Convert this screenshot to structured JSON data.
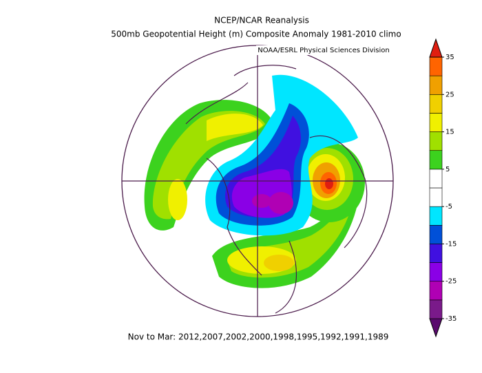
{
  "header": {
    "title": "NCEP/NCAR Reanalysis",
    "subtitle": "500mb Geopotential Height (m) Composite Anomaly 1981-2010 climo",
    "credit": "NOAA/ESRL Physical Sciences Division"
  },
  "footer": "Nov to Mar: 2012,2007,2002,2000,1998,1995,1992,1991,1989",
  "colorbar": {
    "lim": [
      -35,
      35
    ],
    "ticks": [
      35,
      25,
      15,
      5,
      -5,
      -15,
      -25,
      -35
    ],
    "colors": [
      "#5a0a6e",
      "#7a1a8a",
      "#b000b4",
      "#8a00e6",
      "#4010e0",
      "#0050d8",
      "#00e6ff",
      "#ffffff",
      "#ffffff",
      "#3cd21e",
      "#a0e000",
      "#f0f000",
      "#f0d000",
      "#f0a000",
      "#ff6400",
      "#e01e10"
    ]
  }
}
